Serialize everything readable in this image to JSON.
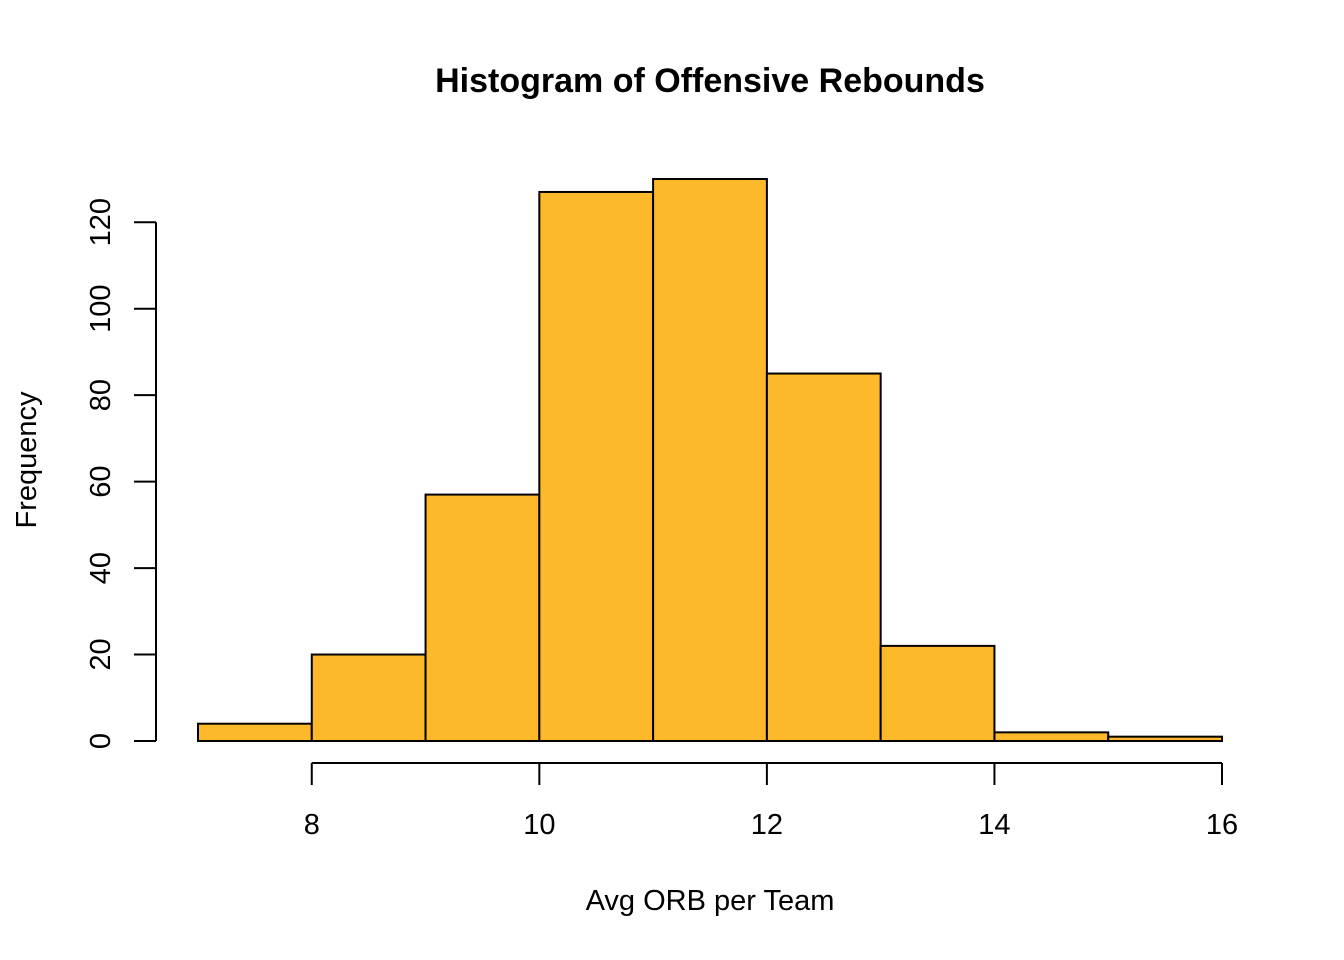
{
  "chart_data": {
    "type": "bar",
    "title": "Histogram of Offensive Rebounds",
    "xlabel": "Avg ORB per Team",
    "ylabel": "Frequency",
    "bins": [
      {
        "start": 7,
        "end": 8,
        "count": 4
      },
      {
        "start": 8,
        "end": 9,
        "count": 20
      },
      {
        "start": 9,
        "end": 10,
        "count": 57
      },
      {
        "start": 10,
        "end": 11,
        "count": 127
      },
      {
        "start": 11,
        "end": 12,
        "count": 130
      },
      {
        "start": 12,
        "end": 13,
        "count": 85
      },
      {
        "start": 13,
        "end": 14,
        "count": 22
      },
      {
        "start": 14,
        "end": 15,
        "count": 2
      },
      {
        "start": 15,
        "end": 16,
        "count": 1
      }
    ],
    "x_ticks": [
      "8",
      "10",
      "12",
      "14",
      "16"
    ],
    "y_ticks": [
      "0",
      "20",
      "40",
      "60",
      "80",
      "100",
      "120"
    ],
    "xlim": [
      7,
      16
    ],
    "ylim": [
      0,
      130
    ],
    "bar_color": "#FDB92A",
    "grid": false
  }
}
